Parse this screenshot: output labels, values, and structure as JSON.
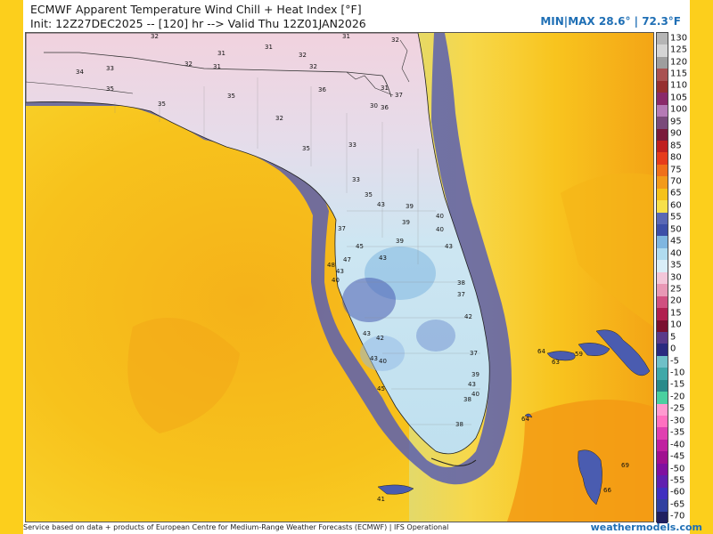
{
  "header": {
    "title_line1": "ECMWF Apparent Temperature Wind Chill + Heat Index [°F]",
    "title_line2": "Init: 12Z27DEC2025 -- [120] hr --> Valid Thu 12Z01JAN2026",
    "minmax": "MIN|MAX 28.6° | 72.3°F"
  },
  "colors": {
    "outer_border": "#fccf1c",
    "ocean_warm": "#f5c21a",
    "ocean_hot": "#f59a12",
    "near_shore": "#6b6fb3",
    "land_cool": "#cfe8f2",
    "land_cold": "#f0c8d6",
    "brand": "#1f6fb5"
  },
  "colorbar": {
    "labels": [
      "130",
      "125",
      "120",
      "115",
      "110",
      "105",
      "100",
      "95",
      "90",
      "85",
      "80",
      "75",
      "70",
      "65",
      "60",
      "55",
      "50",
      "45",
      "40",
      "35",
      "30",
      "25",
      "20",
      "15",
      "10",
      "5",
      "0",
      "-5",
      "-10",
      "-15",
      "-20",
      "-25",
      "-30",
      "-35",
      "-40",
      "-45",
      "-50",
      "-55",
      "-60",
      "-65",
      "-70"
    ],
    "colors": [
      "#b5b5b5",
      "#d4d4d4",
      "#9e9e9e",
      "#a95252",
      "#963030",
      "#8a2a6a",
      "#b57ab5",
      "#7a4a7a",
      "#7a1a3a",
      "#c02020",
      "#e63c1c",
      "#f0701a",
      "#f29a1a",
      "#f5c21a",
      "#f7e04a",
      "#5a68b5",
      "#3d4fa8",
      "#7fb6e0",
      "#b0dcf0",
      "#d9eef8",
      "#f3c7d9",
      "#e898b5",
      "#d05080",
      "#b02050",
      "#7a1030",
      "#5a3a8a",
      "#2a2a80",
      "#6fc0c8",
      "#40a8a8",
      "#2a8a8a",
      "#4ad0a0",
      "#ff9ad0",
      "#ff70c0",
      "#e040b0",
      "#c020a0",
      "#a01090",
      "#8010a0",
      "#6020b0",
      "#4030c0",
      "#3040a0",
      "#202060"
    ]
  },
  "map_labels": [
    "32",
    "31",
    "31",
    "32",
    "31",
    "32",
    "31",
    "32",
    "33",
    "34",
    "32",
    "35",
    "35",
    "36",
    "31",
    "37",
    "30",
    "36",
    "35",
    "32",
    "35",
    "33",
    "33",
    "35",
    "43",
    "39",
    "40",
    "39",
    "37",
    "40",
    "43",
    "45",
    "39",
    "43",
    "48",
    "47",
    "43",
    "40",
    "38",
    "37",
    "42",
    "43",
    "42",
    "40",
    "43",
    "37",
    "39",
    "45",
    "43",
    "40",
    "38",
    "38",
    "64",
    "63",
    "59",
    "64",
    "69",
    "66",
    "41"
  ],
  "footer": {
    "credit": "Service based on data + products of European Centre for Medium-Range Weather Forecasts (ECMWF) | IFS Operational",
    "brand": "weathermodels.com"
  }
}
